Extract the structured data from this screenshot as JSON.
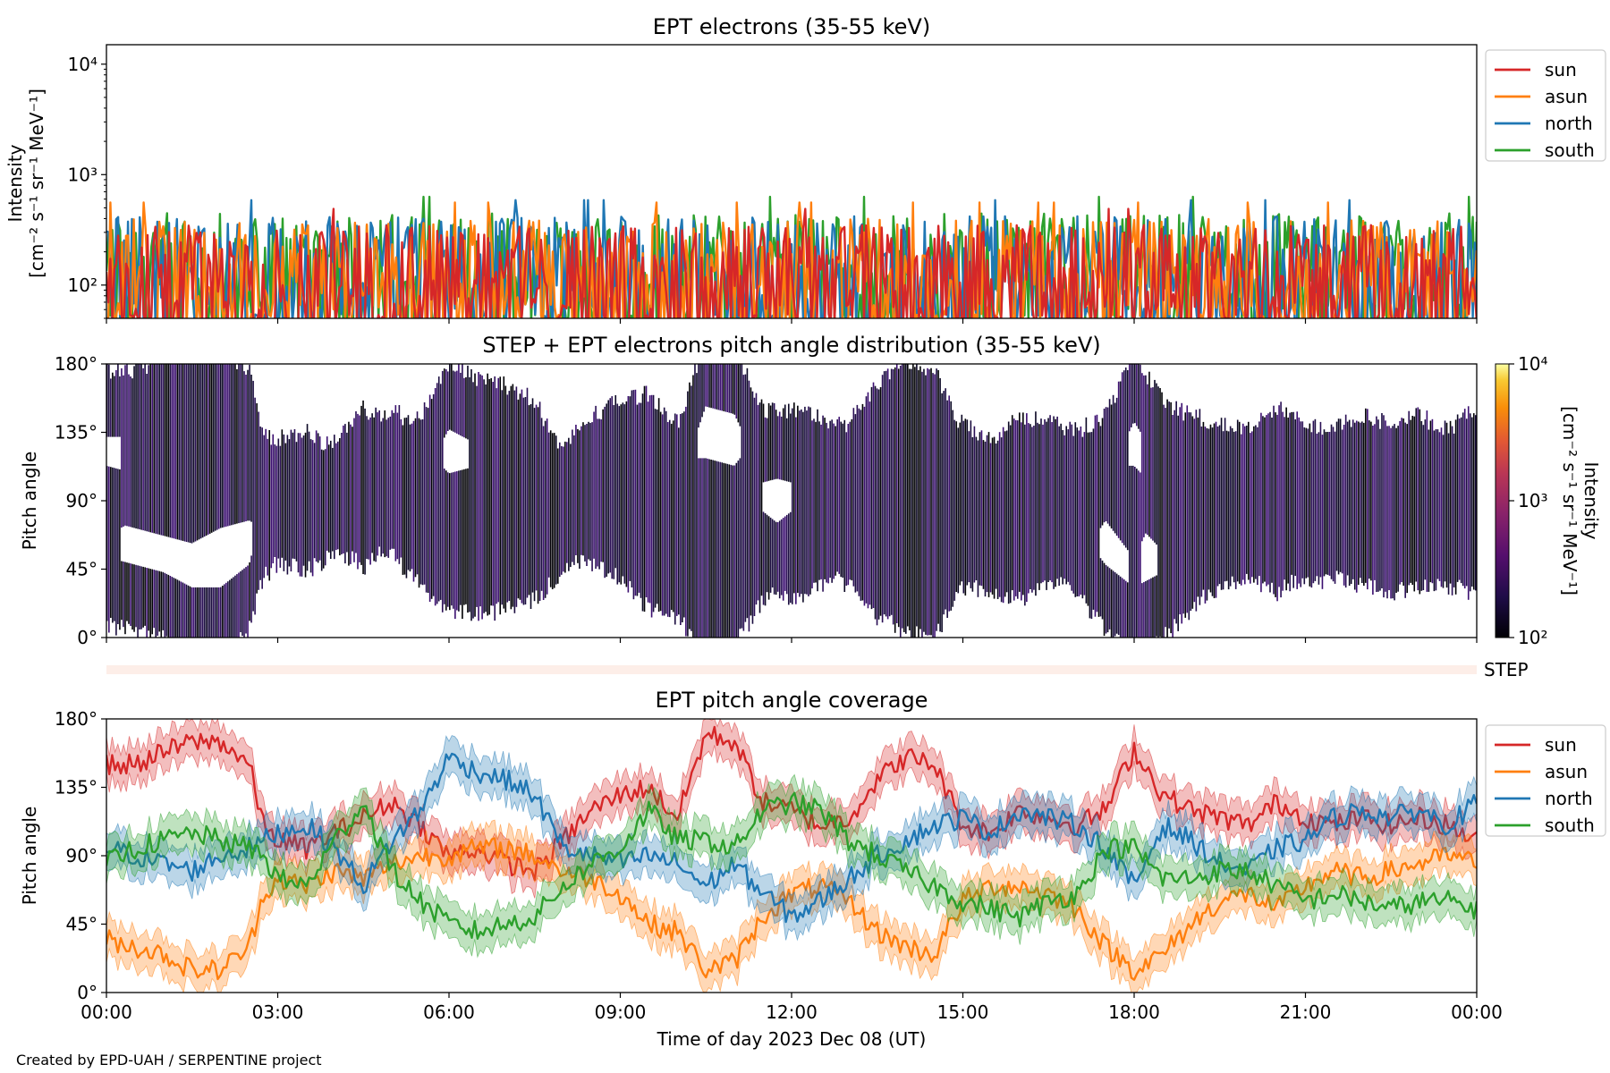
{
  "figure": {
    "footer": "Created by EPD-UAH / SERPENTINE project",
    "xlabel": "Time of day 2023 Dec 08 (UT)",
    "xticks": [
      "00:00",
      "03:00",
      "06:00",
      "09:00",
      "12:00",
      "15:00",
      "18:00",
      "21:00",
      "00:00"
    ]
  },
  "colors": {
    "sun": "#d62728",
    "asun": "#ff7f0e",
    "north": "#1f77b4",
    "south": "#2ca02c",
    "step_band": "#fdeee8"
  },
  "chart_data": [
    {
      "type": "line",
      "title": "EPT electrons (35-55 keV)",
      "ylabel_line1": "Intensity",
      "ylabel_line2": "[cm⁻² s⁻¹ sr⁻¹ MeV⁻¹]",
      "yscale": "log",
      "ylim": [
        50,
        15000
      ],
      "yticks": [
        {
          "value": 100,
          "label": "10²"
        },
        {
          "value": 1000,
          "label": "10³"
        },
        {
          "value": 10000,
          "label": "10⁴"
        }
      ],
      "xlim_hours": [
        0,
        24
      ],
      "legend": {
        "placement": "outside-right",
        "entries": [
          "sun",
          "asun",
          "north",
          "south"
        ]
      },
      "series": [
        {
          "name": "sun",
          "typical_range": [
            60,
            350
          ]
        },
        {
          "name": "asun",
          "typical_range": [
            60,
            400
          ]
        },
        {
          "name": "north",
          "typical_range": [
            60,
            420
          ]
        },
        {
          "name": "south",
          "typical_range": [
            60,
            450
          ]
        }
      ]
    },
    {
      "type": "heatmap",
      "title": "STEP + EPT electrons pitch angle distribution (35-55 keV)",
      "ylabel": "Pitch angle",
      "ylim": [
        0,
        180
      ],
      "yticks": [
        "0°",
        "45°",
        "90°",
        "135°",
        "180°"
      ],
      "colorbar": {
        "label_line1": "Intensity",
        "label_line2": "[cm⁻² s⁻¹ sr⁻¹ MeV⁻¹]",
        "scale": "log",
        "range": [
          100,
          10000
        ],
        "ticks": [
          "10²",
          "10³",
          "10⁴"
        ]
      },
      "step_label": "STEP"
    },
    {
      "type": "line",
      "title": "EPT pitch angle coverage",
      "ylabel": "Pitch angle",
      "ylim": [
        0,
        180
      ],
      "yticks": [
        "0°",
        "45°",
        "90°",
        "135°",
        "180°"
      ],
      "xlim_hours": [
        0,
        24
      ],
      "legend": {
        "placement": "outside-right",
        "entries": [
          "sun",
          "asun",
          "north",
          "south"
        ]
      },
      "series": [
        {
          "name": "sun",
          "x": [
            0,
            0.5,
            1,
            1.5,
            2,
            2.5,
            2.75,
            3,
            3.5,
            4,
            4.5,
            5,
            5.5,
            6,
            6.5,
            7,
            7.5,
            8,
            8.5,
            9,
            9.5,
            10,
            10.5,
            11,
            11.5,
            12,
            12.5,
            13,
            13.5,
            14,
            14.5,
            15,
            15.5,
            16,
            16.5,
            17,
            17.5,
            18,
            18.5,
            19,
            19.5,
            20,
            20.5,
            21,
            21.5,
            22,
            22.5,
            23,
            23.5,
            24
          ],
          "values": [
            150,
            150,
            158,
            165,
            165,
            150,
            110,
            100,
            95,
            105,
            115,
            125,
            110,
            90,
            95,
            85,
            80,
            100,
            120,
            130,
            135,
            115,
            170,
            165,
            125,
            120,
            110,
            115,
            140,
            155,
            150,
            110,
            105,
            120,
            115,
            110,
            120,
            160,
            130,
            120,
            115,
            110,
            125,
            115,
            110,
            115,
            110,
            115,
            110,
            100
          ]
        },
        {
          "name": "asun",
          "x": [
            0,
            0.5,
            1,
            1.5,
            2,
            2.5,
            2.75,
            3,
            3.5,
            4,
            4.5,
            5,
            5.5,
            6,
            6.5,
            7,
            7.5,
            8,
            8.5,
            9,
            9.5,
            10,
            10.5,
            11,
            11.5,
            12,
            12.5,
            13,
            13.5,
            14,
            14.5,
            15,
            15.5,
            16,
            16.5,
            17,
            17.5,
            18,
            18.5,
            19,
            19.5,
            20,
            20.5,
            21,
            21.5,
            22,
            22.5,
            23,
            23.5,
            24
          ],
          "values": [
            35,
            30,
            25,
            15,
            15,
            30,
            65,
            75,
            70,
            80,
            75,
            85,
            90,
            90,
            95,
            95,
            90,
            80,
            75,
            65,
            45,
            40,
            15,
            20,
            50,
            65,
            70,
            60,
            40,
            30,
            25,
            60,
            70,
            70,
            65,
            55,
            30,
            15,
            25,
            45,
            60,
            65,
            55,
            70,
            80,
            75,
            80,
            85,
            90,
            85
          ]
        },
        {
          "name": "north",
          "x": [
            0,
            0.5,
            1,
            1.5,
            2,
            2.5,
            2.75,
            3,
            3.5,
            4,
            4.5,
            5,
            5.5,
            6,
            6.5,
            7,
            7.5,
            8,
            8.5,
            9,
            9.5,
            10,
            10.5,
            11,
            11.5,
            12,
            12.5,
            13,
            13.5,
            14,
            14.5,
            15,
            15.5,
            16,
            16.5,
            17,
            17.5,
            18,
            18.5,
            19,
            19.5,
            20,
            20.5,
            21,
            21.5,
            22,
            22.5,
            23,
            23.5,
            24
          ],
          "values": [
            95,
            90,
            85,
            80,
            90,
            95,
            100,
            105,
            110,
            95,
            70,
            100,
            120,
            155,
            145,
            140,
            130,
            95,
            90,
            85,
            90,
            85,
            70,
            85,
            65,
            50,
            60,
            75,
            90,
            100,
            110,
            115,
            105,
            120,
            115,
            110,
            95,
            70,
            110,
            100,
            85,
            80,
            95,
            100,
            115,
            120,
            115,
            120,
            110,
            125
          ]
        },
        {
          "name": "south",
          "x": [
            0,
            0.5,
            1,
            1.5,
            2,
            2.5,
            2.75,
            3,
            3.5,
            4,
            4.5,
            5,
            5.5,
            6,
            6.5,
            7,
            7.5,
            8,
            8.5,
            9,
            9.5,
            10,
            10.5,
            11,
            11.5,
            12,
            12.5,
            13,
            13.5,
            14,
            14.5,
            15,
            15.5,
            16,
            16.5,
            17,
            17.5,
            18,
            18.5,
            19,
            19.5,
            20,
            20.5,
            21,
            21.5,
            22,
            22.5,
            23,
            23.5,
            24
          ],
          "values": [
            85,
            95,
            100,
            105,
            100,
            95,
            90,
            75,
            70,
            100,
            125,
            80,
            60,
            45,
            40,
            45,
            50,
            70,
            85,
            95,
            120,
            100,
            100,
            95,
            120,
            125,
            120,
            100,
            90,
            80,
            70,
            60,
            55,
            50,
            60,
            65,
            95,
            95,
            75,
            75,
            80,
            80,
            70,
            60,
            65,
            60,
            55,
            60,
            60,
            55
          ]
        }
      ]
    }
  ]
}
